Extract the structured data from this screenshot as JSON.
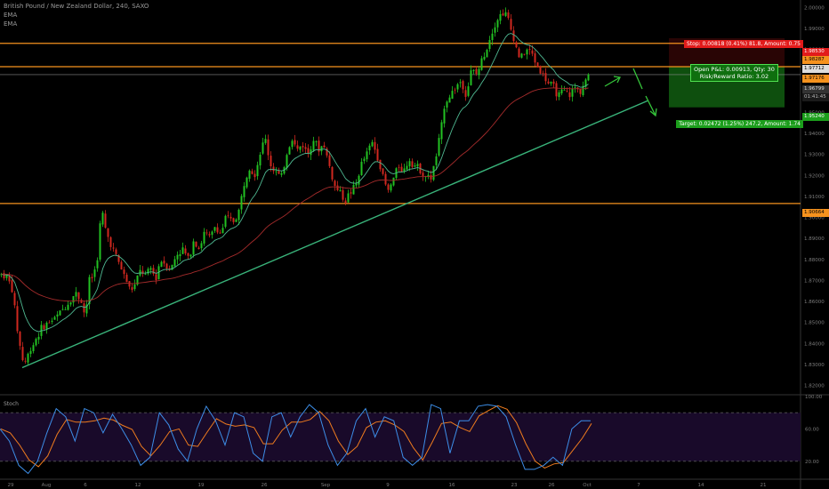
{
  "header": {
    "symbol_line": "British Pound / New Zealand Dollar, 240, SAXO",
    "indicator1": "EMA",
    "indicator2": "EMA"
  },
  "stoch_label": "Stoch",
  "position": {
    "stop_text": "Stop: 0.00818 (0.41%) 81.8, Amount: 0.75",
    "target_text": "Target: 0.02472 (1.25%) 247.2, Amount: 1.74",
    "pl_line1": "Open P&L: 0.00913, Qty: 30",
    "pl_line2": "Risk/Reward Ratio: 3.02"
  },
  "price_tags": {
    "stop": "1.98530",
    "upper_orange": "1.98287",
    "current_high": "1.97712",
    "entry": "1.97176",
    "last": "1.96799",
    "countdown": "01:41:45",
    "target": "1.95240",
    "lower_orange": "1.90664"
  },
  "colors": {
    "up": "#22c122",
    "down": "#d0281f",
    "ema_fast": "#4fb891",
    "ema_slow": "#a42b2b",
    "levels": "#f5921e",
    "trend": "#39b37a",
    "stop": "#e21b1b",
    "target": "#1c9e1c",
    "stoch_k": "#3d8ee8",
    "stoch_d": "#f07c1e",
    "stoch_band": "#190a2a"
  },
  "chart_data": [
    {
      "type": "candlestick",
      "title": "British Pound / New Zealand Dollar, 240, SAXO",
      "x_tick_labels": [
        "29",
        "Aug",
        "6",
        "12",
        "19",
        "26",
        "Sep",
        "9",
        "16",
        "23",
        "26",
        "Oct",
        "7",
        "14",
        "21"
      ],
      "y_tick_labels": [
        "2.00000",
        "1.99000",
        "1.98000",
        "1.97000",
        "1.96000",
        "1.95000",
        "1.94000",
        "1.93000",
        "1.92000",
        "1.91000",
        "1.90000",
        "1.89000",
        "1.88000",
        "1.87000",
        "1.86000",
        "1.85000",
        "1.84000",
        "1.83000",
        "1.82000"
      ],
      "ylim": [
        1.816,
        2.0035
      ],
      "horizontal_levels": [
        1.98287,
        1.97176,
        1.96799,
        1.90664
      ],
      "ema_series": [
        "EMA",
        "EMA"
      ],
      "price_path": [
        [
          0,
          1.873
        ],
        [
          8,
          1.872
        ],
        [
          14,
          1.865
        ],
        [
          20,
          1.845
        ],
        [
          24,
          1.835
        ],
        [
          27,
          1.83
        ],
        [
          30,
          1.833
        ],
        [
          35,
          1.838
        ],
        [
          40,
          1.842
        ],
        [
          48,
          1.848
        ],
        [
          55,
          1.85
        ],
        [
          62,
          1.852
        ],
        [
          70,
          1.856
        ],
        [
          78,
          1.86
        ],
        [
          85,
          1.864
        ],
        [
          92,
          1.86
        ],
        [
          96,
          1.852
        ],
        [
          100,
          1.87
        ],
        [
          105,
          1.872
        ],
        [
          110,
          1.882
        ],
        [
          114,
          1.905
        ],
        [
          118,
          1.895
        ],
        [
          122,
          1.89
        ],
        [
          127,
          1.885
        ],
        [
          132,
          1.88
        ],
        [
          137,
          1.875
        ],
        [
          142,
          1.87
        ],
        [
          147,
          1.865
        ],
        [
          152,
          1.868
        ],
        [
          158,
          1.875
        ],
        [
          164,
          1.872
        ],
        [
          170,
          1.876
        ],
        [
          175,
          1.87
        ],
        [
          180,
          1.88
        ],
        [
          186,
          1.878
        ],
        [
          192,
          1.875
        ],
        [
          198,
          1.882
        ],
        [
          205,
          1.885
        ],
        [
          212,
          1.88
        ],
        [
          218,
          1.89
        ],
        [
          224,
          1.885
        ],
        [
          230,
          1.893
        ],
        [
          236,
          1.89
        ],
        [
          242,
          1.896
        ],
        [
          248,
          1.892
        ],
        [
          254,
          1.9
        ],
        [
          262,
          1.898
        ],
        [
          268,
          1.902
        ],
        [
          274,
          1.915
        ],
        [
          280,
          1.925
        ],
        [
          286,
          1.92
        ],
        [
          292,
          1.93
        ],
        [
          298,
          1.938
        ],
        [
          304,
          1.925
        ],
        [
          310,
          1.922
        ],
        [
          316,
          1.918
        ],
        [
          322,
          1.93
        ],
        [
          328,
          1.938
        ],
        [
          334,
          1.932
        ],
        [
          340,
          1.935
        ],
        [
          346,
          1.93
        ],
        [
          352,
          1.938
        ],
        [
          358,
          1.932
        ],
        [
          364,
          1.935
        ],
        [
          370,
          1.925
        ],
        [
          376,
          1.915
        ],
        [
          382,
          1.912
        ],
        [
          388,
          1.908
        ],
        [
          394,
          1.912
        ],
        [
          400,
          1.915
        ],
        [
          406,
          1.925
        ],
        [
          412,
          1.93
        ],
        [
          418,
          1.936
        ],
        [
          424,
          1.93
        ],
        [
          430,
          1.92
        ],
        [
          436,
          1.912
        ],
        [
          442,
          1.918
        ],
        [
          448,
          1.925
        ],
        [
          454,
          1.922
        ],
        [
          460,
          1.928
        ],
        [
          466,
          1.925
        ],
        [
          472,
          1.923
        ],
        [
          478,
          1.92
        ],
        [
          484,
          1.918
        ],
        [
          490,
          1.928
        ],
        [
          496,
          1.942
        ],
        [
          500,
          1.955
        ],
        [
          506,
          1.958
        ],
        [
          512,
          1.962
        ],
        [
          518,
          1.965
        ],
        [
          524,
          1.958
        ],
        [
          530,
          1.97
        ],
        [
          536,
          1.968
        ],
        [
          542,
          1.975
        ],
        [
          548,
          1.982
        ],
        [
          554,
          1.99
        ],
        [
          560,
          1.995
        ],
        [
          566,
          1.998
        ],
        [
          570,
          1.996
        ],
        [
          574,
          1.99
        ],
        [
          578,
          1.985
        ],
        [
          582,
          1.978
        ],
        [
          586,
          1.976
        ],
        [
          592,
          1.98
        ],
        [
          598,
          1.978
        ],
        [
          604,
          1.972
        ],
        [
          610,
          1.968
        ],
        [
          616,
          1.964
        ],
        [
          622,
          1.962
        ],
        [
          628,
          1.958
        ],
        [
          634,
          1.96
        ],
        [
          640,
          1.958
        ],
        [
          646,
          1.962
        ],
        [
          652,
          1.96
        ],
        [
          658,
          1.965
        ],
        [
          664,
          1.968
        ]
      ]
    },
    {
      "type": "line",
      "title": "Stoch",
      "y_tick_labels": [
        "100.00",
        "60.00",
        "20.00"
      ],
      "ylim": [
        0,
        100
      ],
      "bands": [
        80,
        20
      ],
      "series": [
        {
          "values": [
            60,
            45,
            15,
            5,
            20,
            55,
            85,
            75,
            45,
            85,
            80,
            55,
            78,
            60,
            40,
            15,
            25,
            80,
            65,
            35,
            20,
            60,
            88,
            70,
            40,
            80,
            75,
            30,
            20,
            75,
            80,
            50,
            75,
            90,
            80,
            40,
            15,
            30,
            70,
            85,
            50,
            75,
            70,
            25,
            15,
            25,
            90,
            85,
            30,
            70,
            70,
            88,
            90,
            88,
            75,
            40,
            10,
            10,
            15,
            25,
            15,
            60,
            70,
            70
          ]
        }
      ]
    }
  ]
}
